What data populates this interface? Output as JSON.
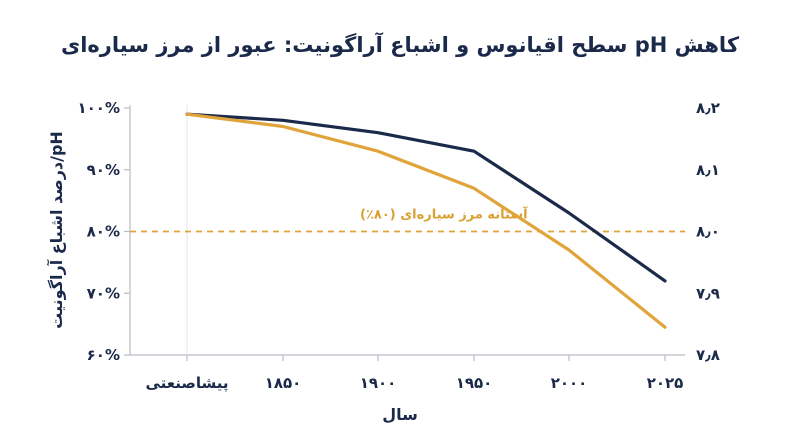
{
  "chart_data": {
    "type": "line",
    "title": "کاهش pH سطح اقیانوس و اشباع آراگونیت: عبور از مرز سیاره‌ای",
    "xlabel": "سال",
    "ylabel_left": "درصد اشباع آراگونیت/pH",
    "categories": [
      "پیشاصنعتی",
      "۱۸۵۰",
      "۱۹۰۰",
      "۱۹۵۰",
      "۲۰۰۰",
      "۲۰۲۵"
    ],
    "left_axis": {
      "ylim": [
        60,
        100
      ],
      "ticks": [
        60,
        70,
        80,
        90,
        100
      ],
      "tick_labels": [
        "۶۰%",
        "۷۰%",
        "۸۰%",
        "۹۰%",
        "۱۰۰%"
      ]
    },
    "right_axis": {
      "ylim": [
        7.8,
        8.2
      ],
      "ticks": [
        7.8,
        7.9,
        8.0,
        8.1,
        8.2
      ],
      "tick_labels": [
        "۷٫۸",
        "۷٫۹",
        "۸٫۰",
        "۸٫۱",
        "۸٫۲"
      ]
    },
    "series": [
      {
        "axis": "right",
        "color": "#1b2a4a",
        "values": [
          8.19,
          8.18,
          8.16,
          8.13,
          8.03,
          7.92
        ]
      },
      {
        "axis": "left",
        "color": "#e0a43a",
        "values": [
          99,
          97,
          93,
          87,
          77,
          64.5
        ]
      }
    ],
    "reference_line": {
      "value": 80,
      "axis": "left",
      "color": "#e0a43a",
      "label": "آستانه مرز سیاره‌ای (۸۰٪)"
    },
    "grid": false,
    "legend": "none"
  }
}
